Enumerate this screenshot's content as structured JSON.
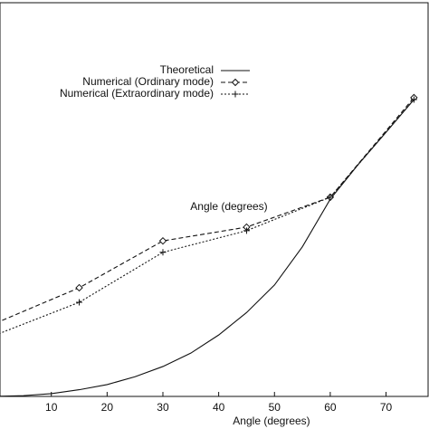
{
  "chart_data": {
    "type": "line",
    "xlabel": "Angle (degrees)",
    "annotations": [
      {
        "text": "Angle (degrees)"
      }
    ],
    "series": [
      {
        "name": "Theoretical",
        "color": "#111111",
        "style": "solid",
        "marker": "none",
        "x": [
          0,
          5,
          10,
          15,
          20,
          25,
          30,
          35,
          40,
          45,
          50,
          55,
          60,
          65,
          70,
          75
        ],
        "values": [
          0,
          0.02,
          0.07,
          0.17,
          0.3,
          0.5,
          0.76,
          1.1,
          1.56,
          2.13,
          2.83,
          3.8,
          5.01,
          5.89,
          6.71,
          7.54
        ]
      },
      {
        "name": "Numerical (Ordinary mode)",
        "color": "#111111",
        "style": "dashed",
        "marker": "diamond",
        "x": [
          0,
          15,
          30,
          45,
          60,
          75
        ],
        "values": [
          1.86,
          2.76,
          3.95,
          4.3,
          5.06,
          7.59
        ]
      },
      {
        "name": "Numerical (Extraordinary mode)",
        "color": "#111111",
        "style": "dotted",
        "marker": "plus",
        "x": [
          0,
          15,
          30,
          45,
          60,
          75
        ],
        "values": [
          1.56,
          2.39,
          3.66,
          4.21,
          5.06,
          7.54
        ]
      }
    ],
    "xlim": [
      0.8,
      77.7
    ],
    "xticks": [
      10,
      20,
      30,
      40,
      50,
      60,
      70
    ],
    "ylim": [
      0,
      10
    ]
  }
}
